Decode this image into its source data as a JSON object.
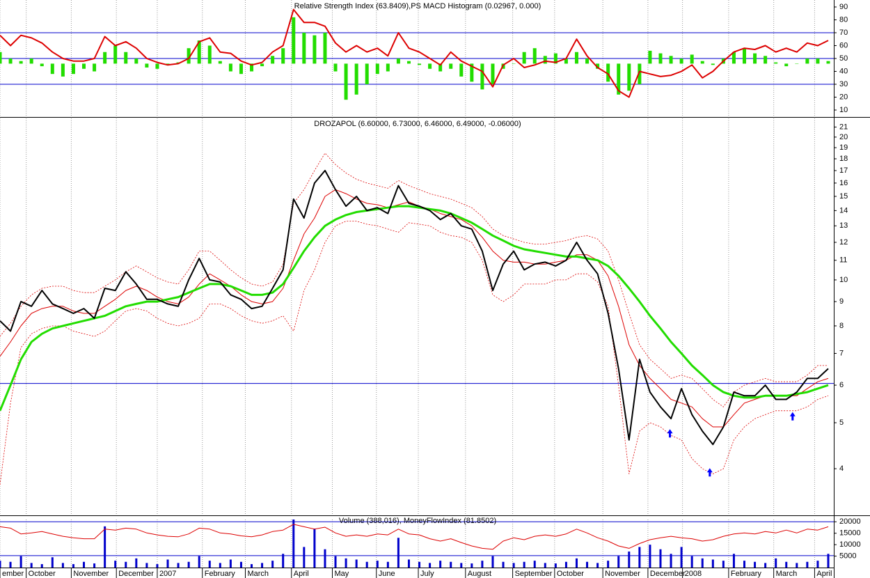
{
  "chart_data": [
    {
      "type": "line",
      "title": "Relative Strength Index (63.8409),PS MACD Histogram (0.02967, 0.000)",
      "xlim": [
        0,
        79
      ],
      "ylim": [
        4.6,
        95.4
      ],
      "yticks": [
        10,
        20,
        30,
        40,
        50,
        60,
        70,
        80,
        90
      ],
      "hlines": [
        70,
        50,
        30
      ],
      "series": [
        {
          "type": "bar",
          "color": "#22dd00",
          "base": 46,
          "values": [
            55,
            50,
            48,
            50,
            44,
            38,
            36,
            38,
            42,
            40,
            55,
            60,
            55,
            50,
            43,
            42,
            45,
            47,
            58,
            64,
            60,
            48,
            40,
            38,
            40,
            44,
            52,
            58,
            82,
            70,
            68,
            70,
            40,
            18,
            22,
            30,
            38,
            40,
            50,
            48,
            45,
            42,
            40,
            42,
            36,
            32,
            26,
            30,
            42,
            46,
            55,
            58,
            52,
            54,
            50,
            55,
            50,
            42,
            32,
            22,
            25,
            30,
            56,
            54,
            52,
            50,
            53,
            48,
            45,
            50,
            55,
            58,
            54,
            52,
            47,
            44,
            46,
            50,
            50,
            48
          ]
        },
        {
          "type": "line",
          "color": "#dd0000",
          "width": 2,
          "values": [
            68,
            60,
            68,
            66,
            62,
            55,
            50,
            48,
            48,
            50,
            67,
            60,
            63,
            58,
            50,
            47,
            45,
            46,
            50,
            63,
            66,
            55,
            54,
            48,
            45,
            47,
            55,
            60,
            88,
            78,
            78,
            75,
            62,
            55,
            60,
            55,
            58,
            52,
            70,
            58,
            55,
            50,
            45,
            55,
            48,
            44,
            40,
            28,
            45,
            50,
            43,
            45,
            48,
            47,
            50,
            65,
            52,
            43,
            38,
            25,
            20,
            40,
            38,
            36,
            37,
            40,
            45,
            35,
            40,
            48,
            55,
            58,
            57,
            60,
            55,
            58,
            55,
            62,
            60,
            64
          ]
        }
      ]
    },
    {
      "type": "line",
      "title": "DROZAPOL (6.60000, 6.73000, 6.46000, 6.49000, -0.06000)",
      "log": true,
      "xlim": [
        0,
        79
      ],
      "ylim": [
        3.19,
        21.9
      ],
      "yticks": [
        4,
        5,
        6,
        7,
        8,
        9,
        10,
        11,
        12,
        13,
        14,
        15,
        16,
        17,
        18,
        19,
        20,
        21
      ],
      "hlines": [
        6.05
      ],
      "arrows": [
        {
          "x": 63.9,
          "y": 4.75
        },
        {
          "x": 67.7,
          "y": 3.93
        },
        {
          "x": 75.6,
          "y": 5.16
        }
      ],
      "series": [
        {
          "type": "line",
          "color": "#dd0000",
          "width": 0.8,
          "dashed": true,
          "values": [
            7.6,
            8.1,
            8.8,
            9.3,
            9.6,
            9.7,
            9.7,
            9.5,
            9.4,
            9.4,
            9.7,
            10.0,
            10.4,
            10.7,
            10.4,
            10.1,
            9.9,
            9.8,
            10.5,
            11.5,
            11.5,
            11.0,
            10.5,
            10.1,
            9.8,
            9.7,
            9.9,
            10.8,
            14.5,
            15.5,
            17.0,
            18.5,
            17.5,
            16.8,
            16.3,
            16.0,
            15.8,
            15.6,
            16.2,
            15.8,
            15.5,
            15.2,
            15.0,
            14.8,
            14.5,
            14.2,
            13.6,
            12.8,
            12.4,
            12.2,
            12.0,
            11.9,
            11.9,
            12.0,
            12.1,
            12.3,
            12.4,
            12.2,
            11.5,
            10.0,
            8.5,
            7.3,
            6.8,
            6.5,
            6.2,
            6.3,
            6.2,
            5.9,
            5.6,
            5.4,
            5.8,
            6.0,
            6.1,
            6.2,
            6.1,
            6.1,
            6.1,
            6.3,
            6.6,
            6.6
          ]
        },
        {
          "type": "line",
          "color": "#dd0000",
          "width": 0.8,
          "dashed": true,
          "values": [
            3.7,
            5.5,
            7.2,
            7.7,
            7.9,
            8.0,
            8.0,
            7.8,
            7.7,
            7.6,
            7.8,
            8.2,
            8.6,
            8.7,
            8.6,
            8.3,
            8.1,
            8.0,
            8.1,
            8.3,
            8.9,
            8.9,
            8.7,
            8.4,
            8.2,
            8.1,
            8.2,
            8.4,
            7.8,
            9.5,
            10.5,
            12.0,
            13.0,
            13.3,
            13.3,
            13.1,
            13.0,
            12.8,
            12.6,
            13.2,
            13.1,
            13.0,
            12.6,
            12.4,
            12.3,
            12.0,
            11.0,
            9.3,
            9.0,
            9.3,
            9.8,
            9.8,
            9.8,
            10.0,
            10.0,
            10.3,
            10.3,
            9.9,
            8.8,
            6.0,
            3.9,
            4.8,
            5.0,
            4.9,
            4.7,
            4.6,
            4.2,
            4.0,
            3.9,
            4.0,
            4.6,
            4.9,
            5.1,
            5.2,
            5.3,
            5.3,
            5.3,
            5.4,
            5.6,
            5.7
          ]
        },
        {
          "type": "line",
          "color": "#dd0000",
          "width": 1,
          "values": [
            6.9,
            7.4,
            8.0,
            8.5,
            8.7,
            8.8,
            8.8,
            8.6,
            8.5,
            8.5,
            8.8,
            9.1,
            9.5,
            9.7,
            9.5,
            9.2,
            9.0,
            8.9,
            9.2,
            9.8,
            10.3,
            10.0,
            9.7,
            9.3,
            9.0,
            8.9,
            9.0,
            9.6,
            11.0,
            12.5,
            13.5,
            15.0,
            15.5,
            15.2,
            14.8,
            14.5,
            14.4,
            14.2,
            14.4,
            14.6,
            14.3,
            14.1,
            13.8,
            13.6,
            13.4,
            13.0,
            12.3,
            11.5,
            11.0,
            10.9,
            10.9,
            10.8,
            10.8,
            10.9,
            11.0,
            11.3,
            11.3,
            11.0,
            10.2,
            8.8,
            7.3,
            6.6,
            6.2,
            5.9,
            5.6,
            5.5,
            5.4,
            5.1,
            4.9,
            4.9,
            5.2,
            5.5,
            5.6,
            5.7,
            5.7,
            5.7,
            5.7,
            5.9,
            6.1,
            6.2
          ]
        },
        {
          "type": "line",
          "color": "#22dd00",
          "width": 3,
          "values": [
            5.3,
            6.0,
            6.8,
            7.4,
            7.7,
            7.9,
            8.0,
            8.1,
            8.2,
            8.3,
            8.4,
            8.6,
            8.8,
            8.9,
            9.0,
            9.0,
            9.1,
            9.2,
            9.4,
            9.6,
            9.8,
            9.8,
            9.7,
            9.5,
            9.3,
            9.3,
            9.4,
            9.8,
            10.6,
            11.5,
            12.3,
            13.0,
            13.4,
            13.7,
            13.9,
            14.0,
            14.1,
            14.2,
            14.3,
            14.3,
            14.2,
            14.1,
            14.0,
            13.8,
            13.5,
            13.2,
            12.8,
            12.4,
            12.1,
            11.8,
            11.6,
            11.5,
            11.4,
            11.3,
            11.2,
            11.2,
            11.1,
            11.0,
            10.7,
            10.2,
            9.6,
            9.0,
            8.4,
            7.9,
            7.4,
            7.0,
            6.6,
            6.3,
            6.0,
            5.8,
            5.7,
            5.65,
            5.65,
            5.7,
            5.7,
            5.7,
            5.75,
            5.8,
            5.9,
            6.0
          ]
        },
        {
          "type": "line",
          "color": "#000000",
          "width": 2,
          "values": [
            8.2,
            7.8,
            9.0,
            8.8,
            9.5,
            8.9,
            8.7,
            8.5,
            8.7,
            8.3,
            9.6,
            9.5,
            10.4,
            9.8,
            9.1,
            9.1,
            8.9,
            8.8,
            10.0,
            11.1,
            10.0,
            9.9,
            9.3,
            9.1,
            8.7,
            8.8,
            9.6,
            10.5,
            14.8,
            13.5,
            16.0,
            17.0,
            15.5,
            14.3,
            15.0,
            14.0,
            14.2,
            13.8,
            15.8,
            14.5,
            14.3,
            14.0,
            13.4,
            13.8,
            13.0,
            12.8,
            11.5,
            9.5,
            10.8,
            11.5,
            10.5,
            10.8,
            10.9,
            10.7,
            11.0,
            12.0,
            11.0,
            10.3,
            8.5,
            6.5,
            4.6,
            6.8,
            5.8,
            5.4,
            5.1,
            5.9,
            5.2,
            4.8,
            4.5,
            4.9,
            5.8,
            5.7,
            5.7,
            6.0,
            5.6,
            5.6,
            5.8,
            6.2,
            6.2,
            6.5
          ]
        }
      ]
    },
    {
      "type": "bar",
      "title": "Volume (388,016), MoneyFlowIndex (81.8502)",
      "xlim": [
        0,
        79
      ],
      "ylim": [
        0,
        21000
      ],
      "yticks": [
        5000,
        10000,
        15000,
        20000
      ],
      "y2lim": [
        0,
        100
      ],
      "hlines": [
        20000,
        5200
      ],
      "xticks": [
        {
          "value": 0,
          "label": "ember"
        },
        {
          "value": 2.5,
          "label": "October"
        },
        {
          "value": 6.8,
          "label": "November"
        },
        {
          "value": 11.1,
          "label": "December"
        },
        {
          "value": 15,
          "label": "2007"
        },
        {
          "value": 19.3,
          "label": "February"
        },
        {
          "value": 23.4,
          "label": "March"
        },
        {
          "value": 27.8,
          "label": "April"
        },
        {
          "value": 31.7,
          "label": "May"
        },
        {
          "value": 35.9,
          "label": "June"
        },
        {
          "value": 39.9,
          "label": "July"
        },
        {
          "value": 44.4,
          "label": "August"
        },
        {
          "value": 48.9,
          "label": "September"
        },
        {
          "value": 52.9,
          "label": "October"
        },
        {
          "value": 57.5,
          "label": "November"
        },
        {
          "value": 61.8,
          "label": "December"
        },
        {
          "value": 65.1,
          "label": "2008"
        },
        {
          "value": 69.5,
          "label": "February"
        },
        {
          "value": 73.8,
          "label": "March"
        },
        {
          "value": 77.7,
          "label": "April"
        }
      ],
      "series": [
        {
          "type": "bar",
          "color": "#0000cc",
          "values": [
            3000,
            2500,
            5000,
            2000,
            1500,
            4500,
            2000,
            1500,
            2500,
            1800,
            18000,
            3000,
            2500,
            4000,
            2000,
            1500,
            3500,
            2000,
            2500,
            5000,
            3000,
            2000,
            3500,
            2500,
            1500,
            2000,
            3000,
            6000,
            21000,
            9000,
            17000,
            8000,
            5000,
            4000,
            3500,
            2500,
            3000,
            2500,
            13000,
            3500,
            2500,
            2000,
            3000,
            2500,
            2000,
            1800,
            3000,
            5000,
            2500,
            2000,
            2500,
            3000,
            2000,
            1800,
            2500,
            4000,
            2500,
            2000,
            3000,
            5000,
            7000,
            9000,
            10000,
            8000,
            6000,
            9000,
            5000,
            4000,
            3500,
            3000,
            6000,
            3000,
            2500,
            2000,
            4000,
            2500,
            2000,
            2500,
            3000,
            6000
          ]
        },
        {
          "type": "line",
          "axis": "y2",
          "color": "#dd0000",
          "width": 1,
          "values": [
            85,
            82,
            70,
            72,
            75,
            70,
            65,
            62,
            60,
            60,
            80,
            78,
            82,
            80,
            72,
            68,
            65,
            64,
            70,
            82,
            80,
            72,
            70,
            66,
            64,
            68,
            75,
            78,
            90,
            85,
            80,
            84,
            72,
            65,
            68,
            65,
            70,
            68,
            80,
            70,
            68,
            60,
            55,
            60,
            52,
            45,
            40,
            38,
            55,
            62,
            58,
            65,
            68,
            65,
            70,
            80,
            72,
            62,
            55,
            45,
            40,
            50,
            58,
            62,
            65,
            62,
            60,
            55,
            58,
            65,
            70,
            72,
            70,
            75,
            72,
            78,
            72,
            80,
            78,
            85
          ]
        }
      ]
    }
  ]
}
